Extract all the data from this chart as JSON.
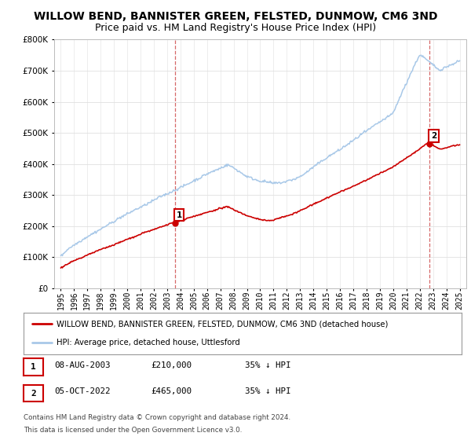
{
  "title": "WILLOW BEND, BANNISTER GREEN, FELSTED, DUNMOW, CM6 3ND",
  "subtitle": "Price paid vs. HM Land Registry's House Price Index (HPI)",
  "ylim": [
    0,
    800000
  ],
  "yticks": [
    0,
    100000,
    200000,
    300000,
    400000,
    500000,
    600000,
    700000,
    800000
  ],
  "xlim_start": 1994.5,
  "xlim_end": 2025.5,
  "hpi_color": "#a8c8e8",
  "sale_color": "#cc0000",
  "marker1_date": 2003.6,
  "marker1_price": 210000,
  "marker2_date": 2022.75,
  "marker2_price": 465000,
  "legend_sale_label": "WILLOW BEND, BANNISTER GREEN, FELSTED, DUNMOW, CM6 3ND (detached house)",
  "legend_hpi_label": "HPI: Average price, detached house, Uttlesford",
  "table_row1": [
    "1",
    "08-AUG-2003",
    "£210,000",
    "35% ↓ HPI"
  ],
  "table_row2": [
    "2",
    "05-OCT-2022",
    "£465,000",
    "35% ↓ HPI"
  ],
  "footnote1": "Contains HM Land Registry data © Crown copyright and database right 2024.",
  "footnote2": "This data is licensed under the Open Government Licence v3.0.",
  "background_color": "#ffffff",
  "grid_color": "#e0e0e0",
  "title_fontsize": 10,
  "subtitle_fontsize": 9,
  "axis_fontsize": 7.5
}
